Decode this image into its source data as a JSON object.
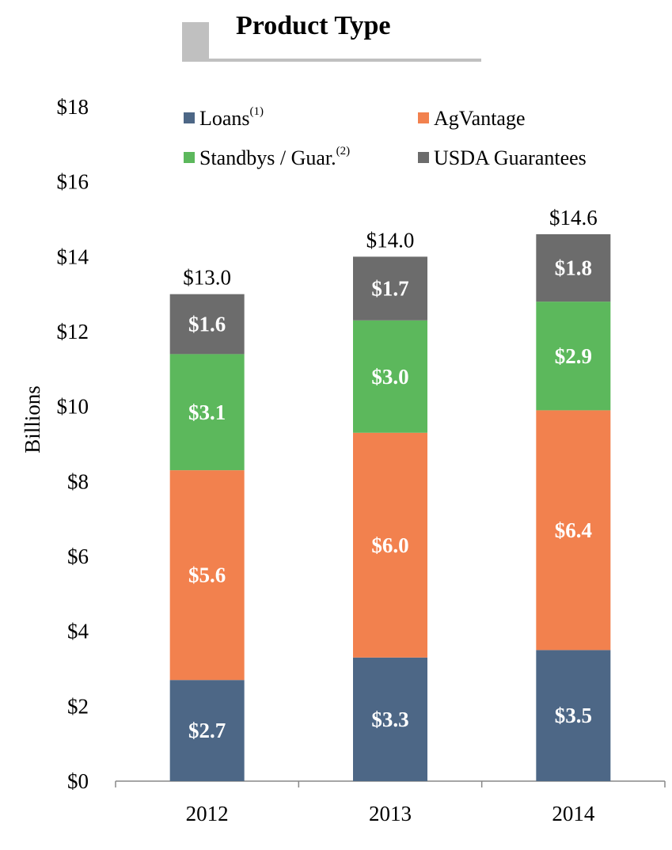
{
  "header": {
    "title": "Product Type"
  },
  "chart_data": {
    "type": "bar",
    "stacked": true,
    "categories": [
      "2012",
      "2013",
      "2014"
    ],
    "series": [
      {
        "name": "Loans",
        "superscript": "(1)",
        "color": "#4d6786",
        "values": [
          2.7,
          3.3,
          3.5
        ],
        "labels": [
          "$2.7",
          "$3.3",
          "$3.5"
        ]
      },
      {
        "name": "AgVantage",
        "superscript": "",
        "color": "#f2814e",
        "values": [
          5.6,
          6.0,
          6.4
        ],
        "labels": [
          "$5.6",
          "$6.0",
          "$6.4"
        ]
      },
      {
        "name": "Standbys / Guar.",
        "superscript": "(2)",
        "color": "#5cb85c",
        "values": [
          3.1,
          3.0,
          2.9
        ],
        "labels": [
          "$3.1",
          "$3.0",
          "$2.9"
        ]
      },
      {
        "name": "USDA Guarantees",
        "superscript": "",
        "color": "#6c6c6c",
        "values": [
          1.6,
          1.7,
          1.8
        ],
        "labels": [
          "$1.6",
          "$1.7",
          "$1.8"
        ]
      }
    ],
    "totals": [
      13.0,
      14.0,
      14.6
    ],
    "total_labels": [
      "$13.0",
      "$14.0",
      "$14.6"
    ],
    "ylabel": "Billions",
    "ylim": [
      0,
      18
    ],
    "yticks": [
      0,
      2,
      4,
      6,
      8,
      10,
      12,
      14,
      16,
      18
    ],
    "ytick_labels": [
      "$0",
      "$2",
      "$4",
      "$6",
      "$8",
      "$10",
      "$12",
      "$14",
      "$16",
      "$18"
    ],
    "grid": false,
    "legend_position": "top"
  }
}
